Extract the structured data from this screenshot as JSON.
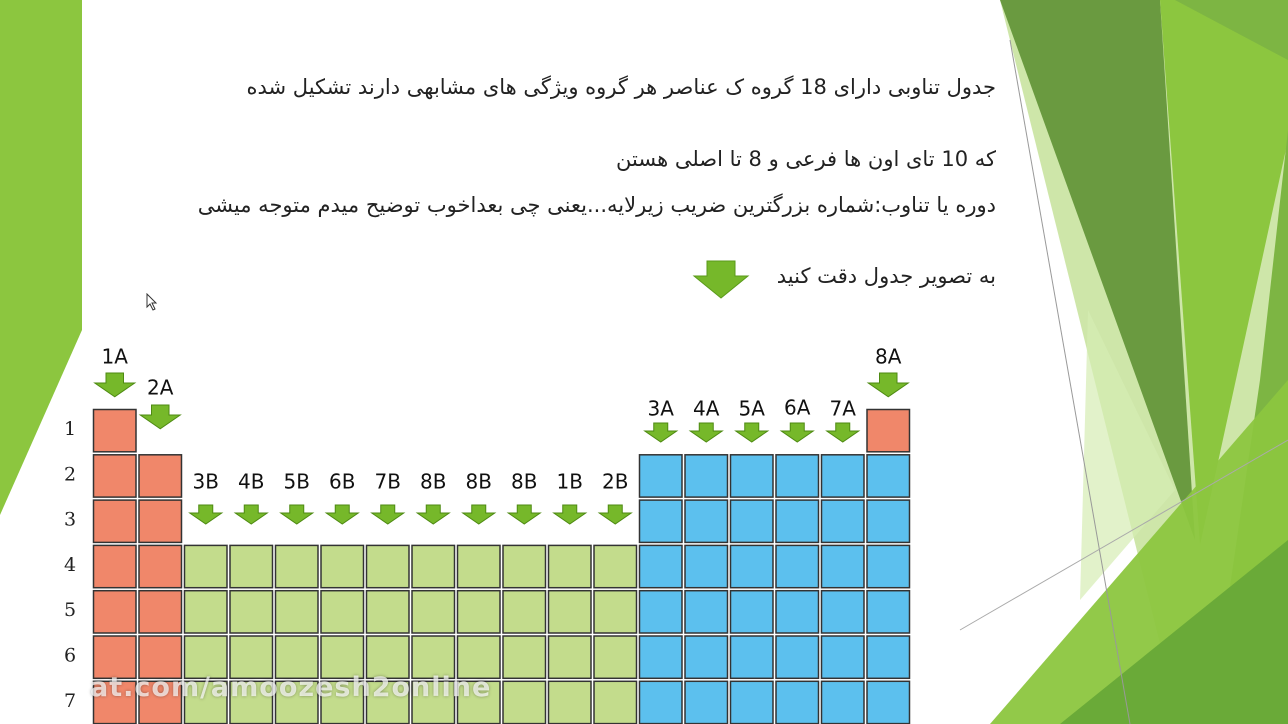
{
  "slide": {
    "colors": {
      "light_green": "#8cc63f",
      "mid_green": "#6a9a40",
      "dark_green": "#4d8a2a",
      "pale_green": "#c9e3a0"
    },
    "text_lines": [
      "جدول تناوبی دارای 18 گروه ک عناصر هر گروه ویژگی های مشابهی دارند تشکیل شده",
      "که 10 تای اون ها فرعی و 8 تا اصلی هستن",
      "دوره یا تناوب:شماره بزرگترین ضریب زیرلایه...یعنی چی بعداخوب توضیح میدم متوجه میشی",
      "به تصویر جدول دقت کنید"
    ],
    "watermark": "at.com/amoozesh2online"
  },
  "periodic_table": {
    "colors": {
      "s_block": "#f0876a",
      "d_block": "#c3dc8c",
      "p_block": "#5cc0ee",
      "arrow": "#76b82a"
    },
    "period_labels": [
      "1",
      "2",
      "3",
      "4",
      "5",
      "6",
      "7"
    ],
    "group_labels": [
      "1A",
      "2A",
      "3B",
      "4B",
      "5B",
      "6B",
      "7B",
      "8B",
      "8B",
      "8B",
      "1B",
      "2B",
      "3A",
      "4A",
      "5A",
      "6A",
      "7A",
      "8A"
    ]
  }
}
